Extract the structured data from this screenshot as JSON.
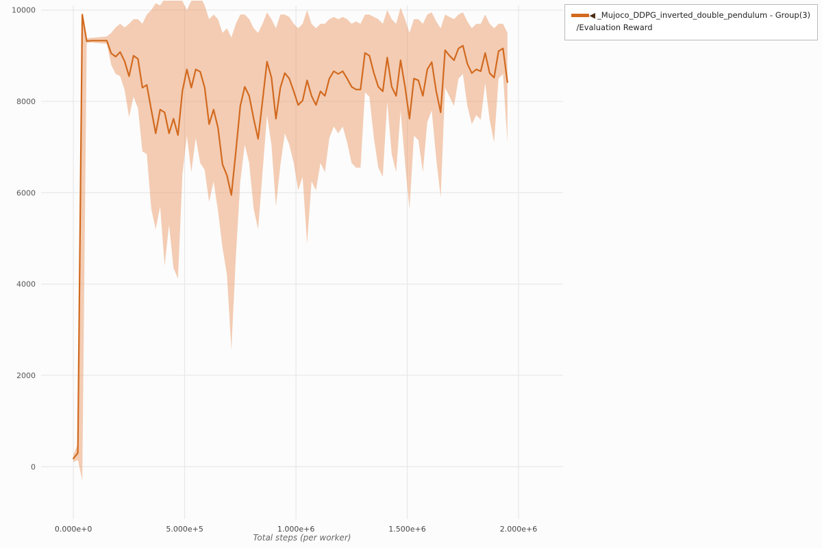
{
  "legend": {
    "marker": "◀",
    "series_label": "_Mujoco_DDPG_inverted_double_pendulum - Group(3)",
    "metric_label": "/Evaluation Reward"
  },
  "axes": {
    "x_title": "Total steps (per worker)"
  },
  "chart_data": {
    "type": "line",
    "title": "",
    "xlabel": "Total steps (per worker)",
    "ylabel": "",
    "legend_position": "top-right",
    "grid": true,
    "line_color": "#d2691e",
    "band_color": "#e8935a",
    "band_opacity": 0.45,
    "grid_color": "#e4e4e4",
    "xlim": [
      -145000,
      2200000
    ],
    "ylim": [
      -1150,
      10100
    ],
    "x_ticks": [
      {
        "value": 0,
        "label": "0.000e+0"
      },
      {
        "value": 500000,
        "label": "5.000e+5"
      },
      {
        "value": 1000000,
        "label": "1.000e+6"
      },
      {
        "value": 1500000,
        "label": "1.500e+6"
      },
      {
        "value": 2000000,
        "label": "2.000e+6"
      }
    ],
    "y_ticks": [
      {
        "value": 0,
        "label": "0"
      },
      {
        "value": 2000,
        "label": "2000"
      },
      {
        "value": 4000,
        "label": "4000"
      },
      {
        "value": 6000,
        "label": "6000"
      },
      {
        "value": 8000,
        "label": "8000"
      },
      {
        "value": 10000,
        "label": "10000"
      }
    ],
    "series": [
      {
        "name": "_Mujoco_DDPG_inverted_double_pendulum - Group(3)",
        "metric": "/Evaluation Reward",
        "x": [
          0,
          20000,
          40000,
          60000,
          80000,
          150000,
          170000,
          190000,
          210000,
          230000,
          250000,
          270000,
          290000,
          310000,
          330000,
          350000,
          370000,
          390000,
          410000,
          430000,
          450000,
          470000,
          490000,
          510000,
          530000,
          550000,
          570000,
          590000,
          610000,
          630000,
          650000,
          670000,
          690000,
          710000,
          730000,
          750000,
          770000,
          790000,
          810000,
          830000,
          850000,
          870000,
          890000,
          910000,
          930000,
          950000,
          970000,
          990000,
          1010000,
          1030000,
          1050000,
          1070000,
          1090000,
          1110000,
          1130000,
          1150000,
          1170000,
          1190000,
          1210000,
          1230000,
          1250000,
          1270000,
          1290000,
          1310000,
          1330000,
          1350000,
          1370000,
          1390000,
          1410000,
          1430000,
          1450000,
          1470000,
          1490000,
          1510000,
          1530000,
          1550000,
          1570000,
          1590000,
          1610000,
          1630000,
          1650000,
          1670000,
          1690000,
          1710000,
          1730000,
          1750000,
          1770000,
          1790000,
          1810000,
          1830000,
          1850000,
          1870000,
          1890000,
          1910000,
          1930000,
          1950000
        ],
        "mean": [
          180,
          300,
          9900,
          9320,
          9330,
          9330,
          9050,
          8980,
          9080,
          8880,
          8550,
          9000,
          8930,
          8300,
          8360,
          7820,
          7300,
          7820,
          7760,
          7300,
          7620,
          7260,
          8230,
          8700,
          8300,
          8700,
          8650,
          8300,
          7500,
          7820,
          7420,
          6620,
          6380,
          5950,
          6900,
          7900,
          8320,
          8120,
          7620,
          7180,
          8020,
          8870,
          8520,
          7620,
          8300,
          8620,
          8500,
          8220,
          7920,
          8020,
          8460,
          8120,
          7920,
          8220,
          8120,
          8500,
          8660,
          8600,
          8660,
          8500,
          8320,
          8260,
          8260,
          9060,
          9000,
          8620,
          8320,
          8220,
          8960,
          8320,
          8120,
          8900,
          8320,
          7620,
          8500,
          8460,
          8120,
          8700,
          8860,
          8220,
          7760,
          9120,
          9000,
          8900,
          9160,
          9220,
          8820,
          8620,
          8700,
          8660,
          9060,
          8620,
          8520,
          9100,
          9160,
          8420
        ],
        "lower": [
          100,
          150,
          -300,
          9280,
          9290,
          9260,
          8800,
          8600,
          8550,
          8250,
          7650,
          8100,
          7850,
          6900,
          6850,
          5650,
          5200,
          5700,
          4400,
          5300,
          4350,
          4120,
          6400,
          7250,
          6450,
          7200,
          6650,
          6500,
          5800,
          6250,
          5600,
          4800,
          4200,
          2560,
          4600,
          6250,
          7050,
          6650,
          5650,
          5200,
          6450,
          7700,
          7050,
          5700,
          6600,
          7300,
          7050,
          6650,
          6050,
          6350,
          4880,
          6250,
          6050,
          6650,
          6450,
          7200,
          7450,
          7300,
          7450,
          7100,
          6650,
          6550,
          6550,
          8200,
          8100,
          7200,
          6550,
          6350,
          8000,
          6850,
          6450,
          7800,
          6650,
          5650,
          7250,
          7150,
          6450,
          7550,
          7800,
          6750,
          5900,
          8300,
          8100,
          7900,
          8500,
          8600,
          7900,
          7500,
          7700,
          7600,
          8400,
          7600,
          7100,
          8500,
          8600,
          7100
        ],
        "upper": [
          260,
          500,
          9950,
          9380,
          9390,
          9420,
          9500,
          9620,
          9700,
          9620,
          9700,
          9800,
          9800,
          9700,
          9900,
          10000,
          10150,
          10100,
          10250,
          10250,
          10300,
          10300,
          10200,
          10000,
          10200,
          10300,
          10300,
          10100,
          9800,
          9900,
          9800,
          9500,
          9600,
          9400,
          9700,
          9900,
          9900,
          9800,
          9600,
          9500,
          9700,
          9950,
          9800,
          9600,
          9900,
          9900,
          9850,
          9700,
          9600,
          9700,
          10000,
          9700,
          9600,
          9700,
          9700,
          9800,
          9850,
          9800,
          9850,
          9800,
          9700,
          9750,
          9700,
          9900,
          9900,
          9850,
          9800,
          9700,
          10000,
          9800,
          9700,
          10050,
          9800,
          9500,
          9800,
          9800,
          9700,
          9900,
          9950,
          9750,
          9600,
          9900,
          9850,
          9800,
          9900,
          9950,
          9750,
          9600,
          9700,
          9700,
          9900,
          9700,
          9600,
          9700,
          9700,
          9500
        ]
      }
    ]
  }
}
